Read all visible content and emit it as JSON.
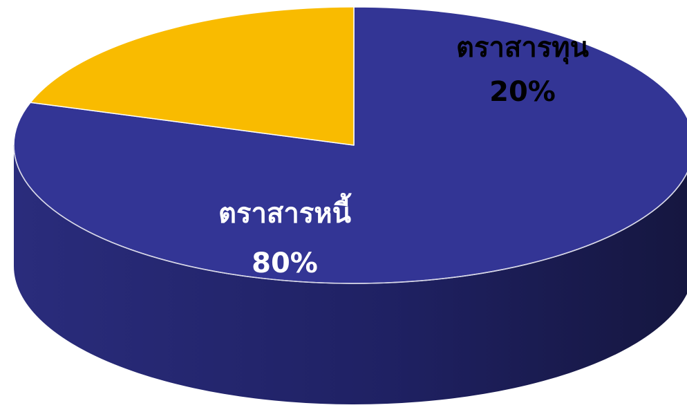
{
  "chart_data": {
    "type": "pie",
    "style": "3d",
    "title": "",
    "legend": "none",
    "slices": [
      {
        "label": "ตราสารหนี้",
        "value": 80,
        "value_label": "80%",
        "color": "#333595",
        "label_color": "#ffffff"
      },
      {
        "label": "ตราสารทุน",
        "value": 20,
        "value_label": "20%",
        "color": "#f9bb00",
        "label_color": "#000000"
      }
    ]
  }
}
